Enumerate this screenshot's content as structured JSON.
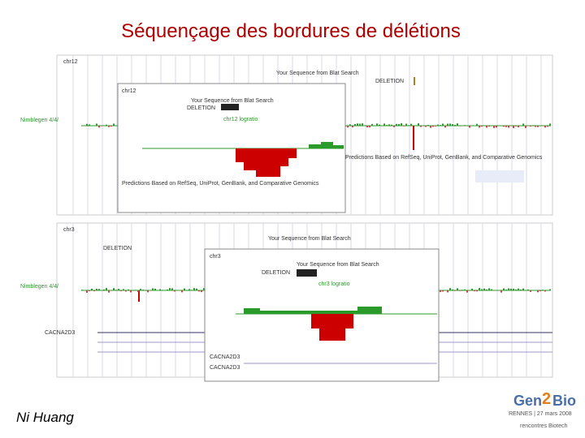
{
  "title": "Séquençage des bordures de délétions",
  "author": "Ni Huang",
  "logo": {
    "left": "Gen",
    "num": "2",
    "right": "Bio",
    "place_date": "RENNES | 27 mars 2008",
    "org": "rencontres Biotech"
  },
  "top_panel": {
    "chrom": "chr12",
    "blat": "Your Sequence from Blat Search",
    "deletion": "DELETION",
    "track": "Nimblegen 4/4/",
    "inset_track": "chr12 logratio",
    "genes": "Predictions Based on RefSeq, UniProt, GenBank, and Comparative Genomics"
  },
  "bottom_panel": {
    "chrom": "chr3",
    "blat": "Your Sequence from Blat Search",
    "deletion": "DELETION",
    "track": "Nimblegen 4/4/",
    "inset_track": "chr3 logratio",
    "gene": "CACNA2D3"
  }
}
